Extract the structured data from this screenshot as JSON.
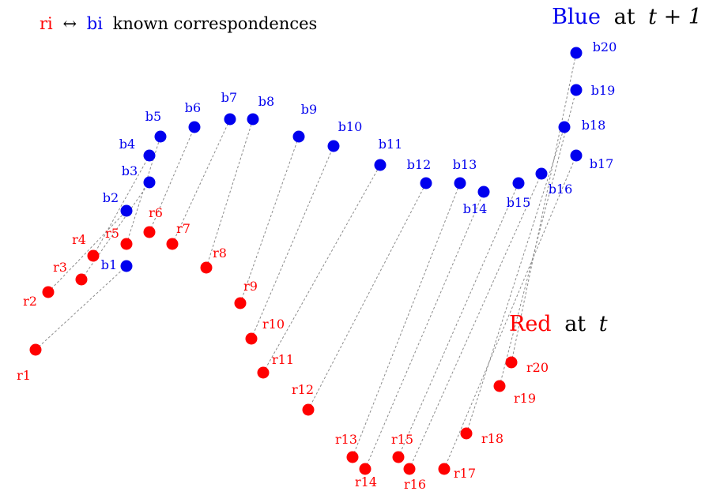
{
  "legend": {
    "ri": "ri",
    "arrow": "↔",
    "bi": "bi",
    "rest": "known correspondences"
  },
  "blue_title": {
    "word": "Blue",
    "suffix": "at",
    "math": "t + 1"
  },
  "red_title": {
    "word": "Red",
    "suffix": "at",
    "math": "t"
  },
  "colors": {
    "red": "#ff0000",
    "blue": "#0000ee",
    "line": "#8c8c8c",
    "text": "#000000"
  },
  "red_labels": [
    "r1",
    "r2",
    "r3",
    "r4",
    "r5",
    "r6",
    "r7",
    "r8",
    "r9",
    "r10",
    "r11",
    "r12",
    "r13",
    "r14",
    "r15",
    "r16",
    "r17",
    "r18",
    "r19",
    "r20"
  ],
  "blue_labels": [
    "b1",
    "b2",
    "b3",
    "b4",
    "b5",
    "b6",
    "b7",
    "b8",
    "b9",
    "b10",
    "b11",
    "b12",
    "b13",
    "b14",
    "b15",
    "b16",
    "b17",
    "b18",
    "b19",
    "b20"
  ]
}
